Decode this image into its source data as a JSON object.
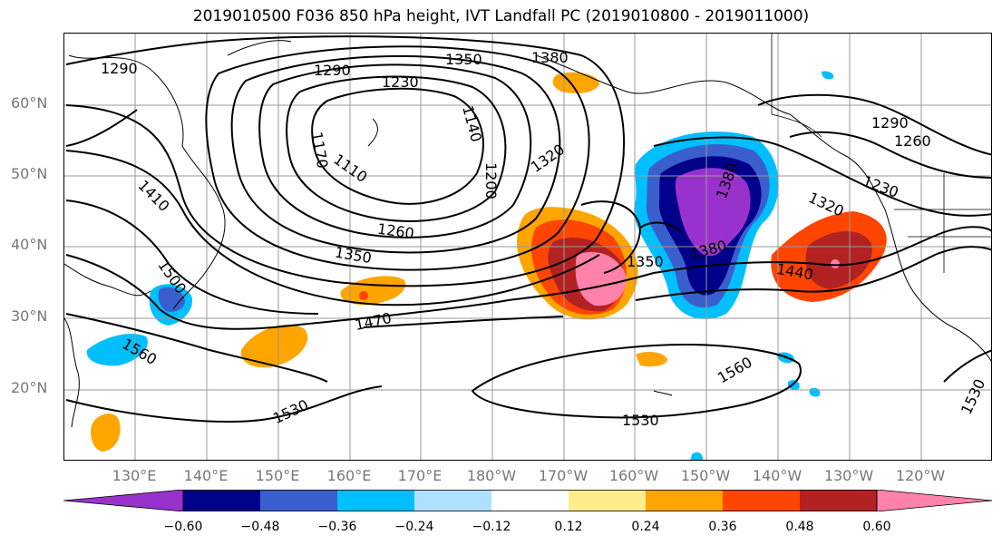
{
  "title": "2019010500 F036 850 hPa height, IVT Landfall PC (2019010800 - 2019011000)",
  "lat_labels": [
    "60°N",
    "50°N",
    "40°N",
    "30°N",
    "20°N"
  ],
  "lon_labels": [
    "130°E",
    "140°E",
    "150°E",
    "160°E",
    "170°E",
    "180°W",
    "170°W",
    "160°W",
    "150°W",
    "140°W",
    "130°W",
    "120°W"
  ],
  "contour_labels": [
    "1290",
    "1350",
    "1380",
    "1290",
    "1230",
    "1140",
    "1170",
    "1110",
    "1320",
    "1200",
    "1410",
    "1260",
    "1350",
    "1290",
    "1260",
    "1230",
    "1320",
    "1380",
    "1380",
    "1350",
    "1440",
    "1470",
    "1500",
    "1560",
    "1530",
    "1560",
    "1530",
    "1530"
  ],
  "colorbar": {
    "colors": [
      "#9932CC",
      "#00008B",
      "#3A5FCD",
      "#00BFFF",
      "#B0E2FF",
      "#FFFFFF",
      "#FFEC8B",
      "#FFA500",
      "#FF4500",
      "#B22222",
      "#FF82AB"
    ],
    "tick_labels": [
      "−0.60",
      "−0.48",
      "−0.36",
      "−0.24",
      "−0.12",
      "0.12",
      "0.24",
      "0.36",
      "0.48",
      "0.60"
    ]
  }
}
